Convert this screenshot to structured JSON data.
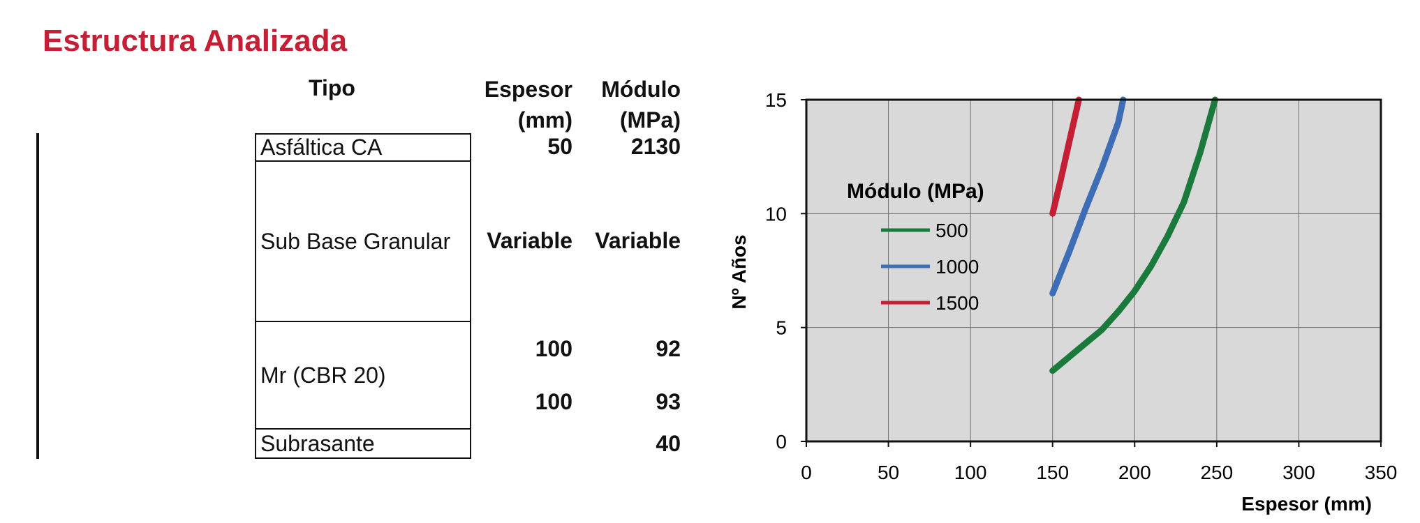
{
  "title": "Estructura Analizada",
  "table": {
    "headers": {
      "tipo": "Tipo",
      "espesor_1": "Espesor",
      "espesor_2": "(mm)",
      "modulo_1": "Módulo",
      "modulo_2": "(MPa)"
    },
    "layers": [
      {
        "name": "Asfáltica CA",
        "color": "#141414",
        "espesor": [
          "50"
        ],
        "modulo": [
          "2130"
        ]
      },
      {
        "name": "Sub Base Granular",
        "color": "#777777",
        "espesor": [
          "Variable"
        ],
        "modulo": [
          "Variable"
        ]
      },
      {
        "name": "Mr (CBR 20)",
        "color": "#3a3b3b",
        "espesor": [
          "100",
          "100"
        ],
        "modulo": [
          "92",
          "93"
        ]
      },
      {
        "name": "Subrasante",
        "color": "#bdbcbb",
        "espesor": [
          ""
        ],
        "modulo": [
          "40"
        ]
      }
    ]
  },
  "colors": {
    "title": "#c41f35",
    "plot_bg": "#d9d9d9"
  },
  "chart_data": {
    "type": "line",
    "xlabel": "Espesor (mm)",
    "ylabel": "Nº Años",
    "xlim": [
      0,
      350
    ],
    "ylim": [
      0,
      15
    ],
    "x_ticks": [
      "0",
      "50",
      "100",
      "150",
      "200",
      "250",
      "300",
      "350"
    ],
    "y_ticks": [
      "0",
      "5",
      "10",
      "15"
    ],
    "grid": true,
    "legend_title": "Módulo (MPa)",
    "legend_position": "upper-left",
    "series": [
      {
        "name": "500",
        "color": "#1a7a3c",
        "x": [
          150,
          160,
          170,
          180,
          190,
          200,
          210,
          220,
          230,
          240,
          249
        ],
        "y": [
          3.1,
          3.7,
          4.3,
          4.9,
          5.7,
          6.6,
          7.7,
          9.0,
          10.5,
          12.7,
          15.0
        ]
      },
      {
        "name": "1000",
        "color": "#3d6eb5",
        "x": [
          150,
          160,
          170,
          180,
          190,
          193
        ],
        "y": [
          6.5,
          8.3,
          10.2,
          12.0,
          14.0,
          15.0
        ]
      },
      {
        "name": "1500",
        "color": "#c41f35",
        "x": [
          150,
          155,
          160,
          166
        ],
        "y": [
          10.0,
          11.5,
          13.1,
          15.0
        ]
      }
    ]
  }
}
